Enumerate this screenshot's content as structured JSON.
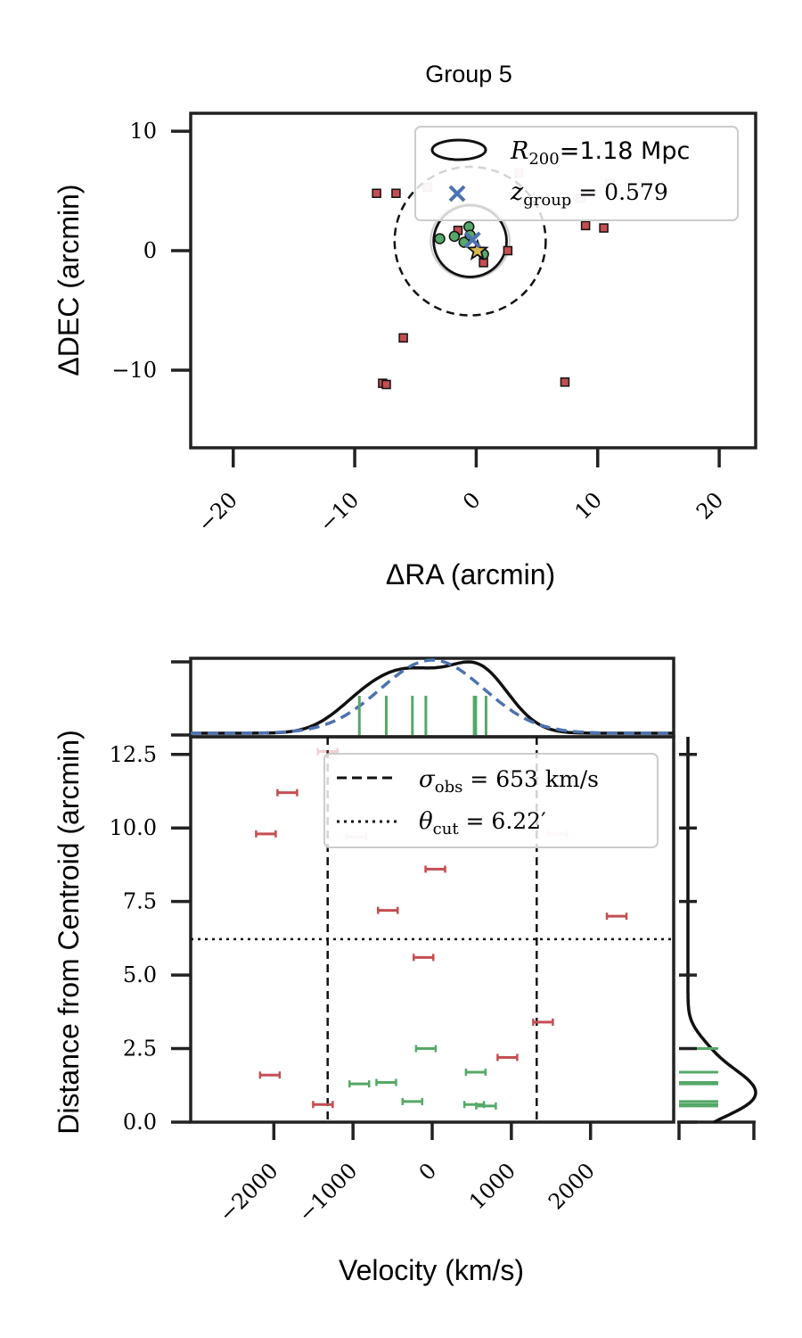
{
  "chart_data": [
    {
      "type": "scatter",
      "title": "Group 5",
      "xlabel": "ΔRA (arcmin)",
      "ylabel": "ΔDEC (arcmin)",
      "xlim": [
        -23.5,
        23
      ],
      "ylim": [
        -16.5,
        11.5
      ],
      "xticks": [
        -20,
        -10,
        0,
        10,
        20
      ],
      "yticks": [
        -10,
        0,
        10
      ],
      "xtick_labels": [
        "−20",
        "−10",
        "0",
        "10",
        "20"
      ],
      "ytick_labels": [
        "−10",
        "0",
        "10"
      ],
      "legend": {
        "position": "top-right",
        "r200_label": "R",
        "r200_sub": "200",
        "r200_value": "=1.18 Mpc",
        "z_label": "z",
        "z_sub": "group",
        "z_value": " = 0.579"
      },
      "r200_circle": {
        "center": [
          -0.5,
          0.8
        ],
        "radius": 3.0
      },
      "outer_circle": {
        "center": [
          -0.5,
          0.8
        ],
        "radius": 6.22
      },
      "light_circle": {
        "center": [
          -0.5,
          0.8
        ],
        "radius": 2.6
      },
      "centroid": [
        -0.3,
        0.9
      ],
      "bcg_star": [
        0.1,
        0.0
      ],
      "members": [
        [
          -3.0,
          1.0
        ],
        [
          -1.8,
          1.2
        ],
        [
          -0.6,
          2.0
        ],
        [
          -1.0,
          0.7
        ],
        [
          0.6,
          -0.3
        ],
        [
          -0.5,
          1.3
        ]
      ],
      "non_members": [
        [
          -8.2,
          4.8
        ],
        [
          -6.6,
          4.8
        ],
        [
          -4.0,
          5.3
        ],
        [
          3.5,
          6.5
        ],
        [
          8.6,
          4.4
        ],
        [
          11.0,
          5.6
        ],
        [
          9.0,
          2.1
        ],
        [
          10.5,
          1.9
        ],
        [
          -1.5,
          1.7
        ],
        [
          2.6,
          0.0
        ],
        [
          0.6,
          -1.0
        ],
        [
          -6.0,
          -7.3
        ],
        [
          -7.7,
          -11.1
        ],
        [
          -7.4,
          -11.2
        ],
        [
          7.3,
          -11.0
        ]
      ],
      "faded_non_members": [
        [
          -4.0,
          5.3
        ],
        [
          3.5,
          6.5
        ],
        [
          8.6,
          4.4
        ],
        [
          11.0,
          5.6
        ]
      ]
    },
    {
      "type": "scatter",
      "xlabel": "Velocity (km/s)",
      "ylabel": "Distance from Centroid (arcmin)",
      "xlim": [
        -3050,
        3050
      ],
      "ylim": [
        0,
        13.1
      ],
      "xticks": [
        -2000,
        -1000,
        0,
        1000,
        2000
      ],
      "yticks": [
        0.0,
        2.5,
        5.0,
        7.5,
        10.0,
        12.5
      ],
      "xtick_labels": [
        "−2000",
        "−1000",
        "0",
        "1000",
        "2000"
      ],
      "ytick_labels": [
        "0.0",
        "2.5",
        "5.0",
        "7.5",
        "10.0",
        "12.5"
      ],
      "sigma_obs_kms": 653,
      "vline_kms": [
        -1320,
        1320
      ],
      "theta_cut_arcmin": 6.22,
      "legend": {
        "position": "top-center",
        "sigma_label": "σ",
        "sigma_sub": "obs",
        "sigma_value": " = 653 km/s",
        "theta_label": "θ",
        "theta_sub": "cut",
        "theta_value": " = 6.22′"
      },
      "members": [
        [
          -920,
          1.3
        ],
        [
          -580,
          1.35
        ],
        [
          -250,
          0.7
        ],
        [
          -80,
          2.5
        ],
        [
          550,
          1.7
        ],
        [
          530,
          0.6
        ],
        [
          680,
          0.55
        ]
      ],
      "non_members": [
        [
          -2050,
          1.6
        ],
        [
          -1380,
          0.6
        ],
        [
          -2100,
          9.8
        ],
        [
          -1830,
          11.2
        ],
        [
          -1320,
          12.6
        ],
        [
          -960,
          9.7
        ],
        [
          -560,
          7.2
        ],
        [
          40,
          8.6
        ],
        [
          -110,
          5.6
        ],
        [
          950,
          2.2
        ],
        [
          1400,
          3.4
        ],
        [
          1580,
          9.8
        ],
        [
          2330,
          7.0
        ]
      ],
      "faded_non_members": [
        [
          -1320,
          12.6
        ],
        [
          -960,
          9.7
        ],
        [
          1580,
          9.8
        ]
      ],
      "top_hist": {
        "member_rug_kms": [
          -920,
          -580,
          -250,
          -80,
          550,
          530,
          680
        ]
      },
      "right_hist": {
        "member_rug_arcmin": [
          0.55,
          0.6,
          0.7,
          1.3,
          1.35,
          1.7,
          2.5
        ]
      }
    }
  ]
}
